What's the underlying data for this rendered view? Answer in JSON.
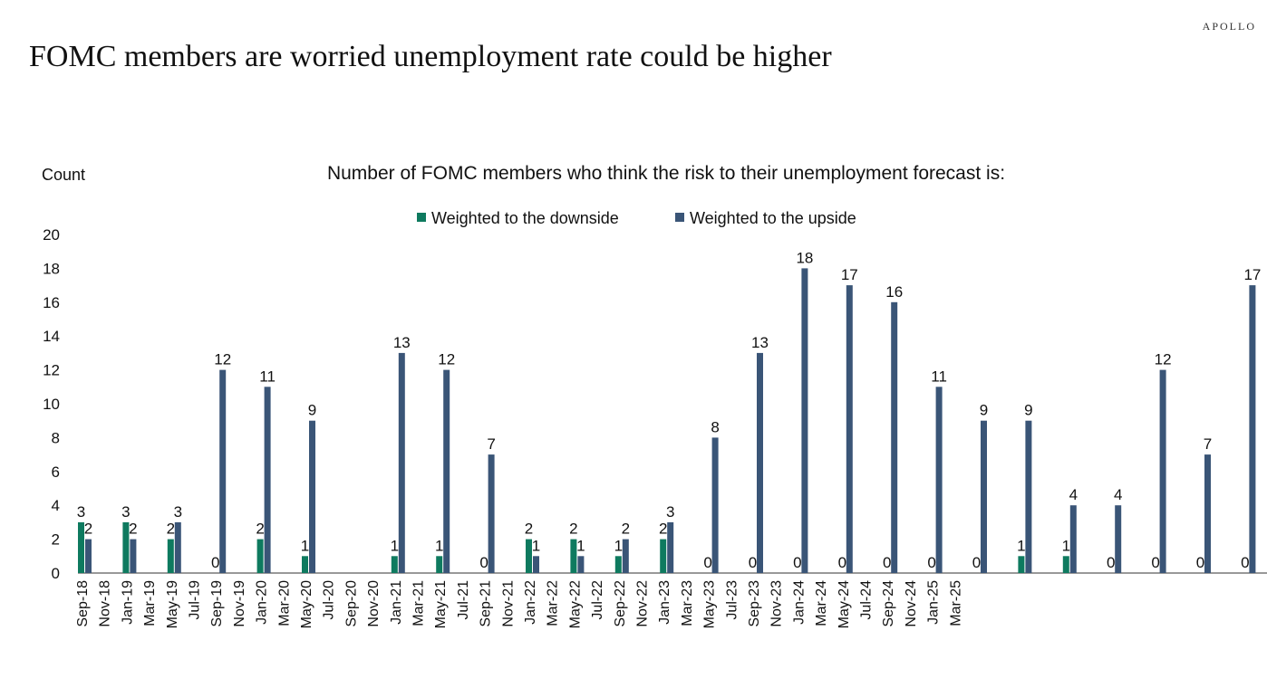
{
  "brand": "APOLLO",
  "headline": "FOMC members are worried unemployment rate could be higher",
  "chart_data": {
    "type": "bar",
    "title": "Number of FOMC members who think the risk to their unemployment forecast is:",
    "ylabel": "Count",
    "xlabel": "",
    "ylim": [
      0,
      20
    ],
    "yticks": [
      0,
      2,
      4,
      6,
      8,
      10,
      12,
      14,
      16,
      18,
      20
    ],
    "legend_position": "top-center",
    "grid": false,
    "categories": [
      "Sep-18",
      "Nov-18",
      "Jan-19",
      "Mar-19",
      "May-19",
      "Jul-19",
      "Sep-19",
      "Nov-19",
      "Jan-20",
      "Mar-20",
      "May-20",
      "Jul-20",
      "Sep-20",
      "Nov-20",
      "Jan-21",
      "Mar-21",
      "May-21",
      "Jul-21",
      "Sep-21",
      "Nov-21",
      "Jan-22",
      "Mar-22",
      "May-22",
      "Jul-22",
      "Sep-22",
      "Nov-22",
      "Jan-23",
      "Mar-23",
      "May-23",
      "Jul-23",
      "Sep-23",
      "Nov-23",
      "Jan-24",
      "Mar-24",
      "May-24",
      "Jul-24",
      "Sep-24",
      "Nov-24",
      "Jan-25",
      "Mar-25"
    ],
    "label_slots": [
      0,
      2,
      4,
      6,
      8,
      10,
      12,
      14,
      16,
      18,
      20,
      22,
      24,
      26,
      28,
      30,
      32,
      34,
      36,
      38,
      40,
      42,
      44,
      46,
      48,
      50,
      52,
      54,
      56,
      58,
      60,
      62,
      64,
      66,
      68,
      70,
      72,
      74,
      76,
      78
    ],
    "series": [
      {
        "name": "Weighted to the downside",
        "color": "#0e7a5f",
        "points": [
          {
            "slot": 0,
            "v": 3
          },
          {
            "slot": 4,
            "v": 3
          },
          {
            "slot": 8,
            "v": 2
          },
          {
            "slot": 12,
            "v": 0
          },
          {
            "slot": 16,
            "v": 2
          },
          {
            "slot": 20,
            "v": 1
          },
          {
            "slot": 28,
            "v": 1
          },
          {
            "slot": 32,
            "v": 1
          },
          {
            "slot": 36,
            "v": 0
          },
          {
            "slot": 40,
            "v": 2
          },
          {
            "slot": 44,
            "v": 2
          },
          {
            "slot": 48,
            "v": 1
          },
          {
            "slot": 52,
            "v": 2
          },
          {
            "slot": 56,
            "v": 0
          },
          {
            "slot": 60,
            "v": 0
          },
          {
            "slot": 64,
            "v": 0
          },
          {
            "slot": 68,
            "v": 0
          },
          {
            "slot": 72,
            "v": 0
          },
          {
            "slot": 76,
            "v": 0
          },
          {
            "slot": 80,
            "v": 0
          },
          {
            "slot": 84,
            "v": 1
          },
          {
            "slot": 88,
            "v": 1
          },
          {
            "slot": 92,
            "v": 0
          },
          {
            "slot": 96,
            "v": 0
          },
          {
            "slot": 100,
            "v": 0
          },
          {
            "slot": 104,
            "v": 0
          }
        ]
      },
      {
        "name": "Weighted to the upside",
        "color": "#3a5577",
        "points": [
          {
            "slot": 0,
            "v": 2
          },
          {
            "slot": 4,
            "v": 2
          },
          {
            "slot": 8,
            "v": 3
          },
          {
            "slot": 12,
            "v": 12
          },
          {
            "slot": 16,
            "v": 11
          },
          {
            "slot": 20,
            "v": 9
          },
          {
            "slot": 28,
            "v": 13
          },
          {
            "slot": 32,
            "v": 12
          },
          {
            "slot": 36,
            "v": 7
          },
          {
            "slot": 40,
            "v": 1
          },
          {
            "slot": 44,
            "v": 1
          },
          {
            "slot": 48,
            "v": 2
          },
          {
            "slot": 52,
            "v": 3
          },
          {
            "slot": 56,
            "v": 8
          },
          {
            "slot": 60,
            "v": 13
          },
          {
            "slot": 64,
            "v": 18
          },
          {
            "slot": 68,
            "v": 17
          },
          {
            "slot": 72,
            "v": 16
          },
          {
            "slot": 76,
            "v": 11
          },
          {
            "slot": 80,
            "v": 9
          },
          {
            "slot": 84,
            "v": 9
          },
          {
            "slot": 88,
            "v": 4
          },
          {
            "slot": 92,
            "v": 4
          },
          {
            "slot": 96,
            "v": 12
          },
          {
            "slot": 100,
            "v": 7
          },
          {
            "slot": 104,
            "v": 17
          }
        ]
      }
    ]
  }
}
